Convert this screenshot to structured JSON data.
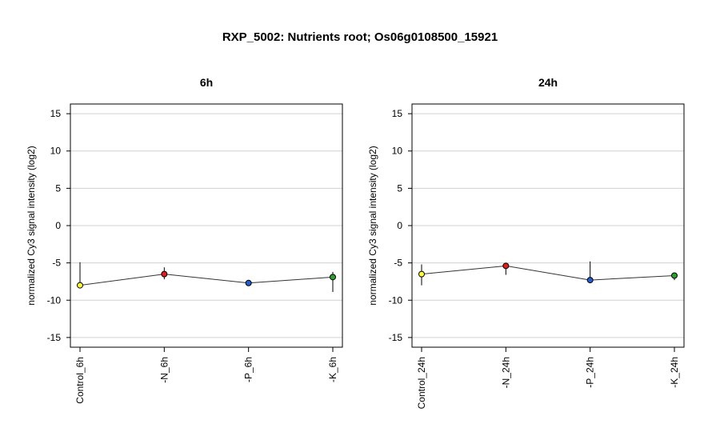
{
  "title": "RXP_5002: Nutrients root; Os06g0108500_15921",
  "chart_data": [
    {
      "type": "line",
      "title": "6h",
      "ylabel": "normalized Cy3 signal intensity (log2)",
      "ylim": [
        -16.3,
        16.3
      ],
      "yticks": [
        -15,
        -10,
        -5,
        0,
        5,
        10,
        15
      ],
      "grid": true,
      "categories": [
        "Control_6h",
        "-N_6h",
        "-P_6h",
        "-K_6h"
      ],
      "values": [
        -8.0,
        -6.5,
        -7.7,
        -6.9
      ],
      "errors_low": [
        -8.0,
        -7.2,
        -7.7,
        -8.9
      ],
      "errors_high": [
        -4.9,
        -5.6,
        -7.7,
        -6.2
      ],
      "point_colors": [
        "#ffff33",
        "#e41a1c",
        "#1f5fd6",
        "#2ca02c"
      ]
    },
    {
      "type": "line",
      "title": "24h",
      "ylabel": "normalized Cy3 signal intensity (log2)",
      "ylim": [
        -16.3,
        16.3
      ],
      "yticks": [
        -15,
        -10,
        -5,
        0,
        5,
        10,
        15
      ],
      "grid": true,
      "categories": [
        "Control_24h",
        "-N_24h",
        "-P_24h",
        "-K_24h"
      ],
      "values": [
        -6.5,
        -5.4,
        -7.3,
        -6.7
      ],
      "errors_low": [
        -8.0,
        -6.6,
        -7.3,
        -7.3
      ],
      "errors_high": [
        -5.2,
        -5.0,
        -4.8,
        -6.3
      ],
      "point_colors": [
        "#ffff33",
        "#e41a1c",
        "#1f5fd6",
        "#2ca02c"
      ]
    }
  ]
}
